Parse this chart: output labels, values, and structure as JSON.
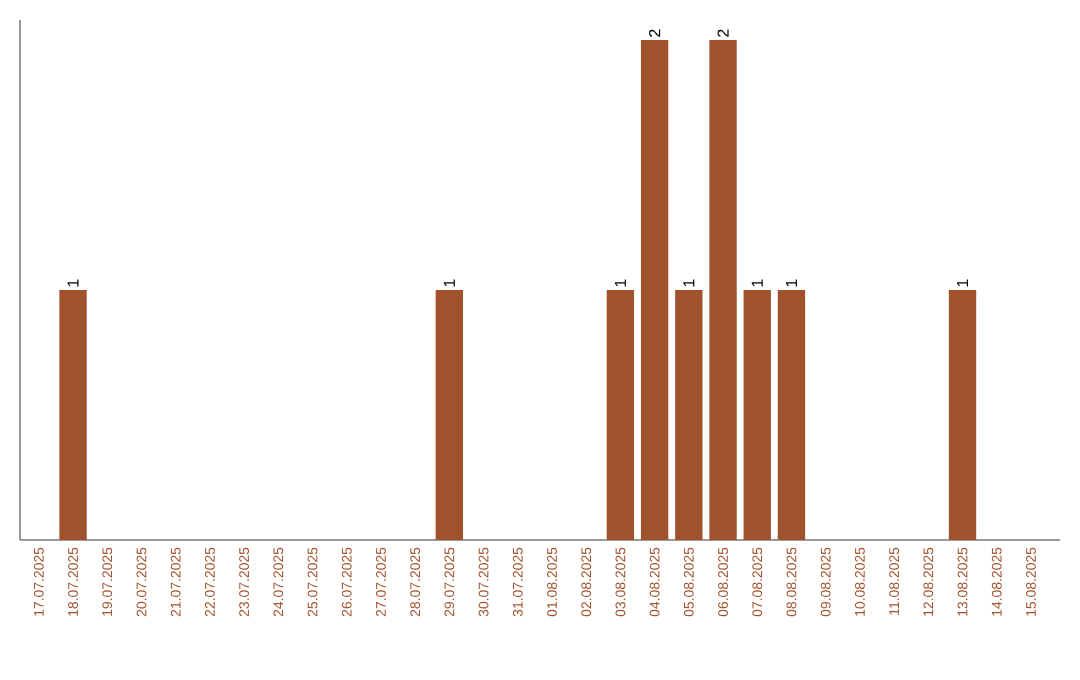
{
  "chart_data": {
    "type": "bar",
    "categories": [
      "17.07.2025",
      "18.07.2025",
      "19.07.2025",
      "20.07.2025",
      "21.07.2025",
      "22.07.2025",
      "23.07.2025",
      "24.07.2025",
      "25.07.2025",
      "26.07.2025",
      "27.07.2025",
      "28.07.2025",
      "29.07.2025",
      "30.07.2025",
      "31.07.2025",
      "01.08.2025",
      "02.08.2025",
      "03.08.2025",
      "04.08.2025",
      "05.08.2025",
      "06.08.2025",
      "07.08.2025",
      "08.08.2025",
      "09.08.2025",
      "10.08.2025",
      "11.08.2025",
      "12.08.2025",
      "13.08.2025",
      "14.08.2025",
      "15.08.2025"
    ],
    "values": [
      0,
      1,
      0,
      0,
      0,
      0,
      0,
      0,
      0,
      0,
      0,
      0,
      1,
      0,
      0,
      0,
      0,
      1,
      2,
      1,
      2,
      1,
      1,
      0,
      0,
      0,
      0,
      1,
      0,
      0
    ],
    "value_labels": [
      null,
      "1",
      null,
      null,
      null,
      null,
      null,
      null,
      null,
      null,
      null,
      null,
      "1",
      null,
      null,
      null,
      null,
      "1",
      "2",
      "1",
      "2",
      "1",
      "1",
      null,
      null,
      null,
      null,
      "1",
      null,
      null
    ],
    "color": "#a0522d",
    "ylim": [
      0,
      2.08
    ],
    "tick_labels": "x"
  }
}
